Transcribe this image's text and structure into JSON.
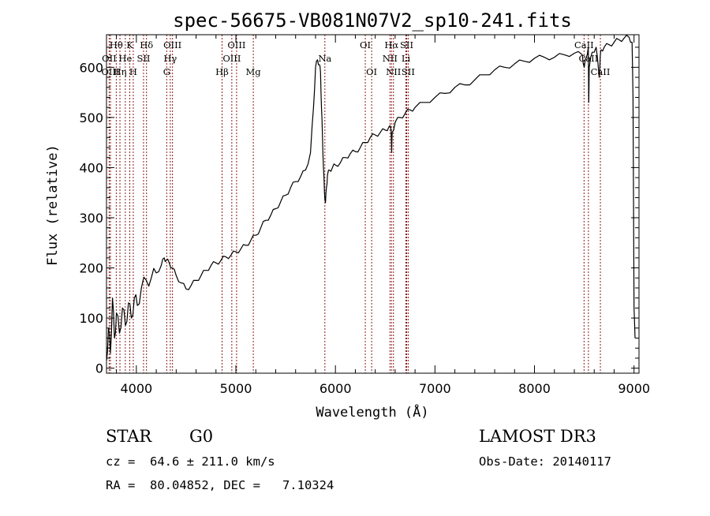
{
  "chart_data": {
    "type": "line",
    "title": "spec-56675-VB081N07V2_sp10-241.fits",
    "xlabel": "Wavelength (Å)",
    "ylabel": "Flux (relative)",
    "xlim": [
      3700,
      9050
    ],
    "ylim": [
      -10,
      665
    ],
    "xticks": [
      {
        "value": 4000,
        "label": "4000"
      },
      {
        "value": 5000,
        "label": "5000"
      },
      {
        "value": 6000,
        "label": "6000"
      },
      {
        "value": 7000,
        "label": "7000"
      },
      {
        "value": 8000,
        "label": "8000"
      },
      {
        "value": 9000,
        "label": "9000"
      }
    ],
    "yticks": [
      {
        "value": 0,
        "label": "0"
      },
      {
        "value": 100,
        "label": "100"
      },
      {
        "value": 200,
        "label": "200"
      },
      {
        "value": 300,
        "label": "300"
      },
      {
        "value": 400,
        "label": "400"
      },
      {
        "value": 500,
        "label": "500"
      },
      {
        "value": 600,
        "label": "600"
      }
    ],
    "grid": false,
    "series": [
      {
        "name": "spectrum",
        "color": "#000000",
        "x": [
          3700,
          3720,
          3740,
          3760,
          3780,
          3800,
          3830,
          3860,
          3890,
          3920,
          3950,
          3980,
          4010,
          4050,
          4100,
          4150,
          4200,
          4250,
          4280,
          4300,
          4330,
          4360,
          4400,
          4450,
          4500,
          4550,
          4600,
          4650,
          4700,
          4750,
          4800,
          4850,
          4900,
          4950,
          5000,
          5050,
          5100,
          5150,
          5200,
          5250,
          5300,
          5350,
          5400,
          5450,
          5500,
          5550,
          5600,
          5650,
          5700,
          5750,
          5780,
          5800,
          5820,
          5840,
          5850,
          5860,
          5870,
          5880,
          5890,
          5900,
          5910,
          5920,
          5940,
          5970,
          6000,
          6050,
          6100,
          6150,
          6200,
          6250,
          6300,
          6350,
          6400,
          6450,
          6500,
          6540,
          6560,
          6565,
          6570,
          6600,
          6650,
          6700,
          6750,
          6800,
          6900,
          7000,
          7100,
          7200,
          7300,
          7400,
          7500,
          7600,
          7700,
          7800,
          7900,
          8000,
          8100,
          8200,
          8300,
          8400,
          8480,
          8500,
          8520,
          8540,
          8545,
          8550,
          8580,
          8620,
          8650,
          8660,
          8670,
          8700,
          8750,
          8800,
          8850,
          8900,
          8950,
          8980,
          8990,
          9000,
          9010
        ],
        "y": [
          15,
          80,
          30,
          140,
          60,
          110,
          70,
          120,
          85,
          130,
          100,
          140,
          125,
          160,
          175,
          180,
          190,
          205,
          220,
          215,
          210,
          200,
          185,
          170,
          158,
          165,
          175,
          185,
          195,
          205,
          210,
          215,
          222,
          225,
          232,
          238,
          245,
          255,
          265,
          280,
          295,
          305,
          318,
          332,
          345,
          360,
          372,
          382,
          395,
          430,
          520,
          600,
          615,
          605,
          590,
          520,
          460,
          400,
          350,
          330,
          360,
          385,
          395,
          400,
          405,
          410,
          420,
          428,
          432,
          440,
          450,
          460,
          465,
          470,
          475,
          482,
          475,
          430,
          470,
          490,
          500,
          508,
          515,
          520,
          530,
          540,
          548,
          560,
          565,
          575,
          585,
          595,
          600,
          607,
          612,
          618,
          620,
          620,
          625,
          628,
          625,
          600,
          620,
          640,
          530,
          600,
          630,
          640,
          580,
          620,
          635,
          640,
          645,
          650,
          655,
          658,
          660,
          650,
          540,
          120,
          60
        ]
      }
    ],
    "annotations": [
      {
        "label": "Hθ",
        "x": 3798,
        "row": 1
      },
      {
        "label": "OII",
        "x": 3727,
        "row": 2
      },
      {
        "label": "OIII",
        "x": 3740,
        "row": 3
      },
      {
        "label": "Hη",
        "x": 3835,
        "row": 3
      },
      {
        "label": "K",
        "x": 3934,
        "row": 1
      },
      {
        "label": "He",
        "x": 3889,
        "row": 2
      },
      {
        "label": "H",
        "x": 3969,
        "row": 3
      },
      {
        "label": "Hδ",
        "x": 4102,
        "row": 1
      },
      {
        "label": "SII",
        "x": 4072,
        "row": 2
      },
      {
        "label": "OIII",
        "x": 4363,
        "row": 1
      },
      {
        "label": "Hγ",
        "x": 4341,
        "row": 2
      },
      {
        "label": "G",
        "x": 4305,
        "row": 3
      },
      {
        "label": "Hβ",
        "x": 4861,
        "row": 3
      },
      {
        "label": "OIII",
        "x": 5007,
        "row": 1
      },
      {
        "label": "OIII",
        "x": 4959,
        "row": 2
      },
      {
        "label": "Mg",
        "x": 5175,
        "row": 3
      },
      {
        "label": "Na",
        "x": 5894,
        "row": 2
      },
      {
        "label": "OI",
        "x": 6300,
        "row": 1
      },
      {
        "label": "OI",
        "x": 6364,
        "row": 3
      },
      {
        "label": "Hα",
        "x": 6563,
        "row": 1
      },
      {
        "label": "NII",
        "x": 6548,
        "row": 2
      },
      {
        "label": "NII",
        "x": 6583,
        "row": 3
      },
      {
        "label": "SII",
        "x": 6716,
        "row": 1
      },
      {
        "label": "Li",
        "x": 6708,
        "row": 2
      },
      {
        "label": "SII",
        "x": 6731,
        "row": 3
      },
      {
        "label": "CaII",
        "x": 8498,
        "row": 1
      },
      {
        "label": "CaII",
        "x": 8542,
        "row": 2
      },
      {
        "label": "CaII",
        "x": 8662,
        "row": 3
      }
    ]
  },
  "info": {
    "object_class": "STAR",
    "subclass": "G0",
    "survey": "LAMOST DR3",
    "redshift": "cz =  64.6 ± 211.0 km/s",
    "obs_date": "Obs-Date: 20140117",
    "coords": "RA =  80.04852, DEC =   7.10324"
  },
  "colors": {
    "axis": "#000000",
    "line_marker": "#8b1a1a",
    "spectrum": "#000000"
  }
}
